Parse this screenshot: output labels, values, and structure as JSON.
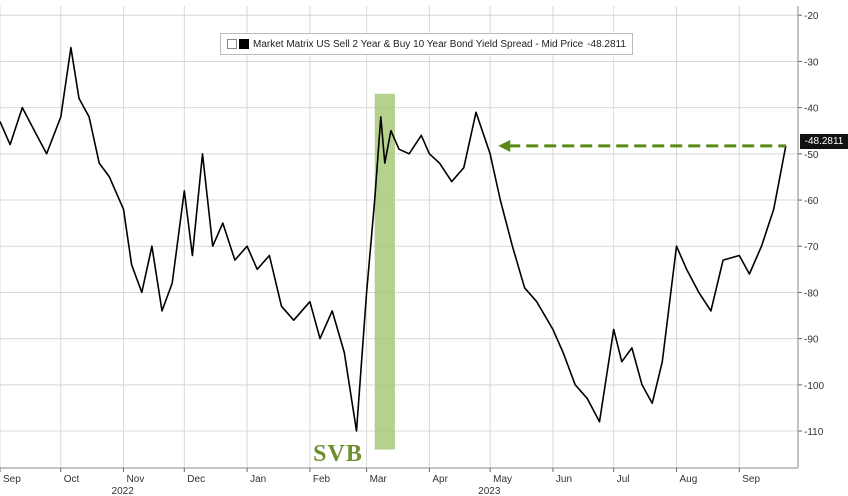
{
  "chart_data": {
    "type": "line",
    "title": "",
    "legend": {
      "label": "Market Matrix US Sell 2 Year & Buy 10 Year Bond Yield Spread - Mid Price",
      "last_value_text": "-48.2811",
      "placement": "top-center"
    },
    "series": [
      {
        "name": "Market Matrix US Sell 2 Year & Buy 10 Year Bond Yield Spread - Mid Price",
        "color": "#000000",
        "x": [
          "2022-09-01",
          "2022-09-06",
          "2022-09-12",
          "2022-09-18",
          "2022-09-24",
          "2022-10-01",
          "2022-10-06",
          "2022-10-10",
          "2022-10-15",
          "2022-10-20",
          "2022-10-25",
          "2022-11-01",
          "2022-11-05",
          "2022-11-10",
          "2022-11-15",
          "2022-11-20",
          "2022-11-25",
          "2022-12-01",
          "2022-12-05",
          "2022-12-10",
          "2022-12-15",
          "2022-12-20",
          "2022-12-26",
          "2023-01-01",
          "2023-01-06",
          "2023-01-12",
          "2023-01-18",
          "2023-01-24",
          "2023-02-01",
          "2023-02-06",
          "2023-02-12",
          "2023-02-18",
          "2023-02-24",
          "2023-03-01",
          "2023-03-05",
          "2023-03-08",
          "2023-03-10",
          "2023-03-13",
          "2023-03-17",
          "2023-03-22",
          "2023-03-28",
          "2023-04-01",
          "2023-04-06",
          "2023-04-12",
          "2023-04-18",
          "2023-04-24",
          "2023-05-01",
          "2023-05-06",
          "2023-05-12",
          "2023-05-18",
          "2023-05-24",
          "2023-06-01",
          "2023-06-06",
          "2023-06-12",
          "2023-06-18",
          "2023-06-24",
          "2023-07-01",
          "2023-07-05",
          "2023-07-10",
          "2023-07-15",
          "2023-07-20",
          "2023-07-25",
          "2023-08-01",
          "2023-08-06",
          "2023-08-12",
          "2023-08-18",
          "2023-08-24",
          "2023-09-01",
          "2023-09-06",
          "2023-09-12",
          "2023-09-18",
          "2023-09-24"
        ],
        "values": [
          -43,
          -48,
          -40,
          -45,
          -50,
          -42,
          -27,
          -38,
          -42,
          -52,
          -55,
          -62,
          -74,
          -80,
          -70,
          -84,
          -78,
          -58,
          -72,
          -50,
          -70,
          -65,
          -73,
          -70,
          -75,
          -72,
          -83,
          -86,
          -82,
          -90,
          -84,
          -93,
          -110,
          -80,
          -60,
          -42,
          -52,
          -45,
          -49,
          -50,
          -46,
          -50,
          -52,
          -56,
          -53,
          -41,
          -50,
          -60,
          -70,
          -79,
          -82,
          -88,
          -93,
          -100,
          -103,
          -108,
          -88,
          -95,
          -92,
          -100,
          -104,
          -95,
          -70,
          -75,
          -80,
          -84,
          -73,
          -72,
          -76,
          -70,
          -62,
          -48.2811
        ]
      },
      {
        "name": "",
        "color": "#5a8a14",
        "style": "dashed",
        "x": [
          "2023-05-05",
          "2023-09-24"
        ],
        "values": [
          -48.2811,
          -48.2811
        ]
      }
    ],
    "shaded_region": {
      "x_start": "2023-03-05",
      "x_end": "2023-03-15",
      "color": "#a8c97a",
      "label": "SVB"
    },
    "y_ticks": [
      -20,
      -30,
      -40,
      -50,
      -60,
      -70,
      -80,
      -90,
      -100,
      -110
    ],
    "ylim": [
      -118,
      -18
    ],
    "y_axis_side": "right",
    "x_axis": {
      "months": [
        {
          "label": "Sep",
          "date": "2022-09-01"
        },
        {
          "label": "Oct",
          "date": "2022-10-01"
        },
        {
          "label": "Nov",
          "date": "2022-11-01"
        },
        {
          "label": "Dec",
          "date": "2022-12-01"
        },
        {
          "label": "Jan",
          "date": "2023-01-01"
        },
        {
          "label": "Feb",
          "date": "2023-02-01"
        },
        {
          "label": "Mar",
          "date": "2023-03-01"
        },
        {
          "label": "Apr",
          "date": "2023-04-01"
        },
        {
          "label": "May",
          "date": "2023-05-01"
        },
        {
          "label": "Jun",
          "date": "2023-06-01"
        },
        {
          "label": "Jul",
          "date": "2023-07-01"
        },
        {
          "label": "Aug",
          "date": "2023-08-01"
        },
        {
          "label": "Sep",
          "date": "2023-09-01"
        }
      ],
      "years": [
        {
          "label": "2022",
          "date": "2022-11-01"
        },
        {
          "label": "2023",
          "date": "2023-05-01"
        }
      ],
      "xlim": [
        "2022-09-01",
        "2023-09-30"
      ]
    },
    "grid": true,
    "colors": {
      "line": "#000000",
      "arrow": "#5a8a14",
      "shade": "#a8c97a",
      "grid": "#d8d8d8"
    }
  }
}
